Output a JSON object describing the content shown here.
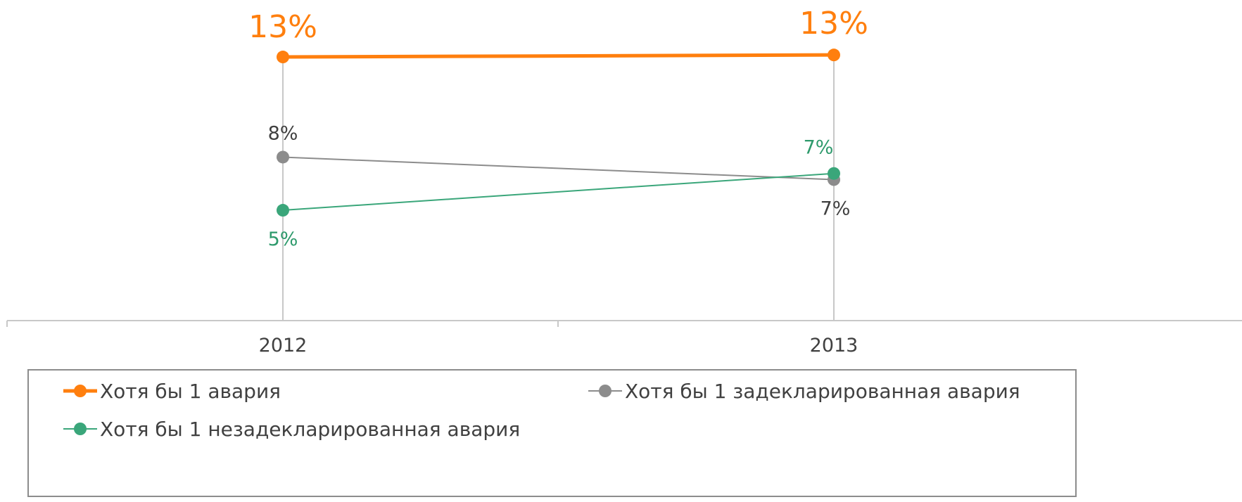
{
  "chart_data": {
    "type": "line",
    "categories": [
      "2012",
      "2013"
    ],
    "ylim": [
      0,
      15
    ],
    "grid": false,
    "legend_position": "bottom",
    "series": [
      {
        "name": "Хотя бы 1 авария",
        "values": [
          12.9,
          13.0
        ],
        "labels": [
          "13%",
          "13%"
        ],
        "color": "#FF7F0E",
        "label_color": "#FF7F0E"
      },
      {
        "name": "Хотя бы 1 задекларированная авария",
        "values": [
          8.0,
          6.9
        ],
        "labels": [
          "8%",
          "7%"
        ],
        "color": "#8C8C8C",
        "label_color": "#404040"
      },
      {
        "name": "Хотя бы 1 незадекларированная авария",
        "values": [
          5.4,
          7.2
        ],
        "labels": [
          "5%",
          "7%"
        ],
        "color": "#3AA67A",
        "label_color": "#2E9A6C"
      }
    ]
  }
}
